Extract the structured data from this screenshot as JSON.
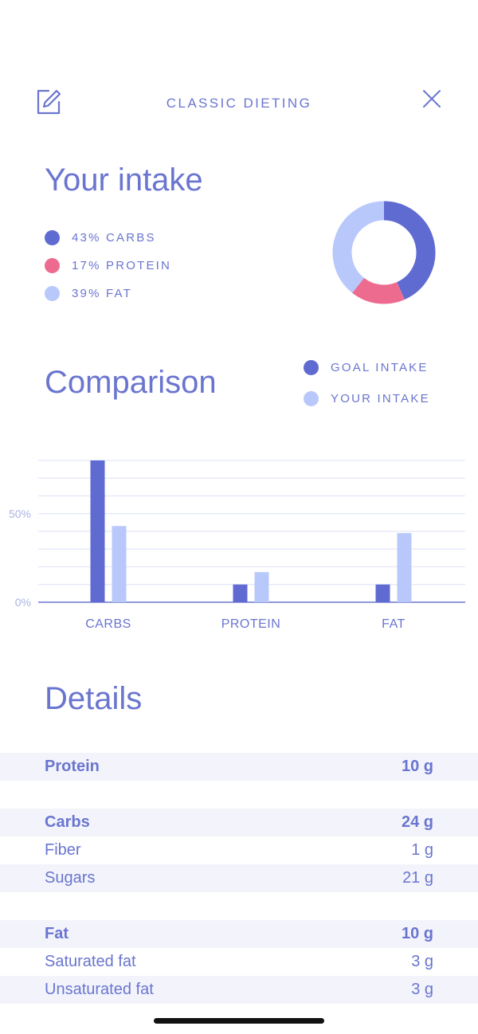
{
  "header": {
    "title": "CLASSIC DIETING",
    "edit_icon": "edit-icon",
    "close_icon": "close-icon"
  },
  "intake": {
    "title": "Your intake",
    "legend": [
      {
        "label": "43% CARBS",
        "color": "#5f6bd0"
      },
      {
        "label": "17% PROTEIN",
        "color": "#ed6b8f"
      },
      {
        "label": "39% FAT",
        "color": "#b9c8fb"
      }
    ]
  },
  "comparison": {
    "title": "Comparison",
    "legend": [
      {
        "label": "GOAL INTAKE",
        "color": "#5f6bd0"
      },
      {
        "label": "YOUR INTAKE",
        "color": "#b9c8fb"
      }
    ]
  },
  "chart_data": [
    {
      "type": "pie",
      "categories": [
        "CARBS",
        "PROTEIN",
        "FAT"
      ],
      "values": [
        43,
        17,
        39
      ],
      "colors": [
        "#5f6bd0",
        "#ed6b8f",
        "#b9c8fb"
      ],
      "title": ""
    },
    {
      "type": "bar",
      "categories": [
        "CARBS",
        "PROTEIN",
        "FAT"
      ],
      "series": [
        {
          "name": "GOAL INTAKE",
          "values": [
            80,
            10,
            10
          ],
          "color": "#5f6bd0"
        },
        {
          "name": "YOUR INTAKE",
          "values": [
            43,
            17,
            39
          ],
          "color": "#b9c8fb"
        }
      ],
      "ytick_labels": [
        "0%",
        "50%"
      ],
      "yticks": [
        0,
        50
      ],
      "ylim": [
        0,
        80
      ],
      "grid": true,
      "title": "",
      "xlabel": "",
      "ylabel": ""
    }
  ],
  "details": {
    "title": "Details",
    "rows": [
      {
        "label": "Protein",
        "value": "10 g",
        "bold": true,
        "shaded": true
      },
      {
        "spacer": true
      },
      {
        "label": "Carbs",
        "value": "24 g",
        "bold": true,
        "shaded": true
      },
      {
        "label": "Fiber",
        "value": "1 g",
        "bold": false,
        "shaded": false
      },
      {
        "label": "Sugars",
        "value": "21 g",
        "bold": false,
        "shaded": true
      },
      {
        "spacer": true
      },
      {
        "label": "Fat",
        "value": "10 g",
        "bold": true,
        "shaded": true
      },
      {
        "label": "Saturated fat",
        "value": "3 g",
        "bold": false,
        "shaded": false
      },
      {
        "label": "Unsaturated fat",
        "value": "3 g",
        "bold": false,
        "shaded": true
      }
    ]
  }
}
